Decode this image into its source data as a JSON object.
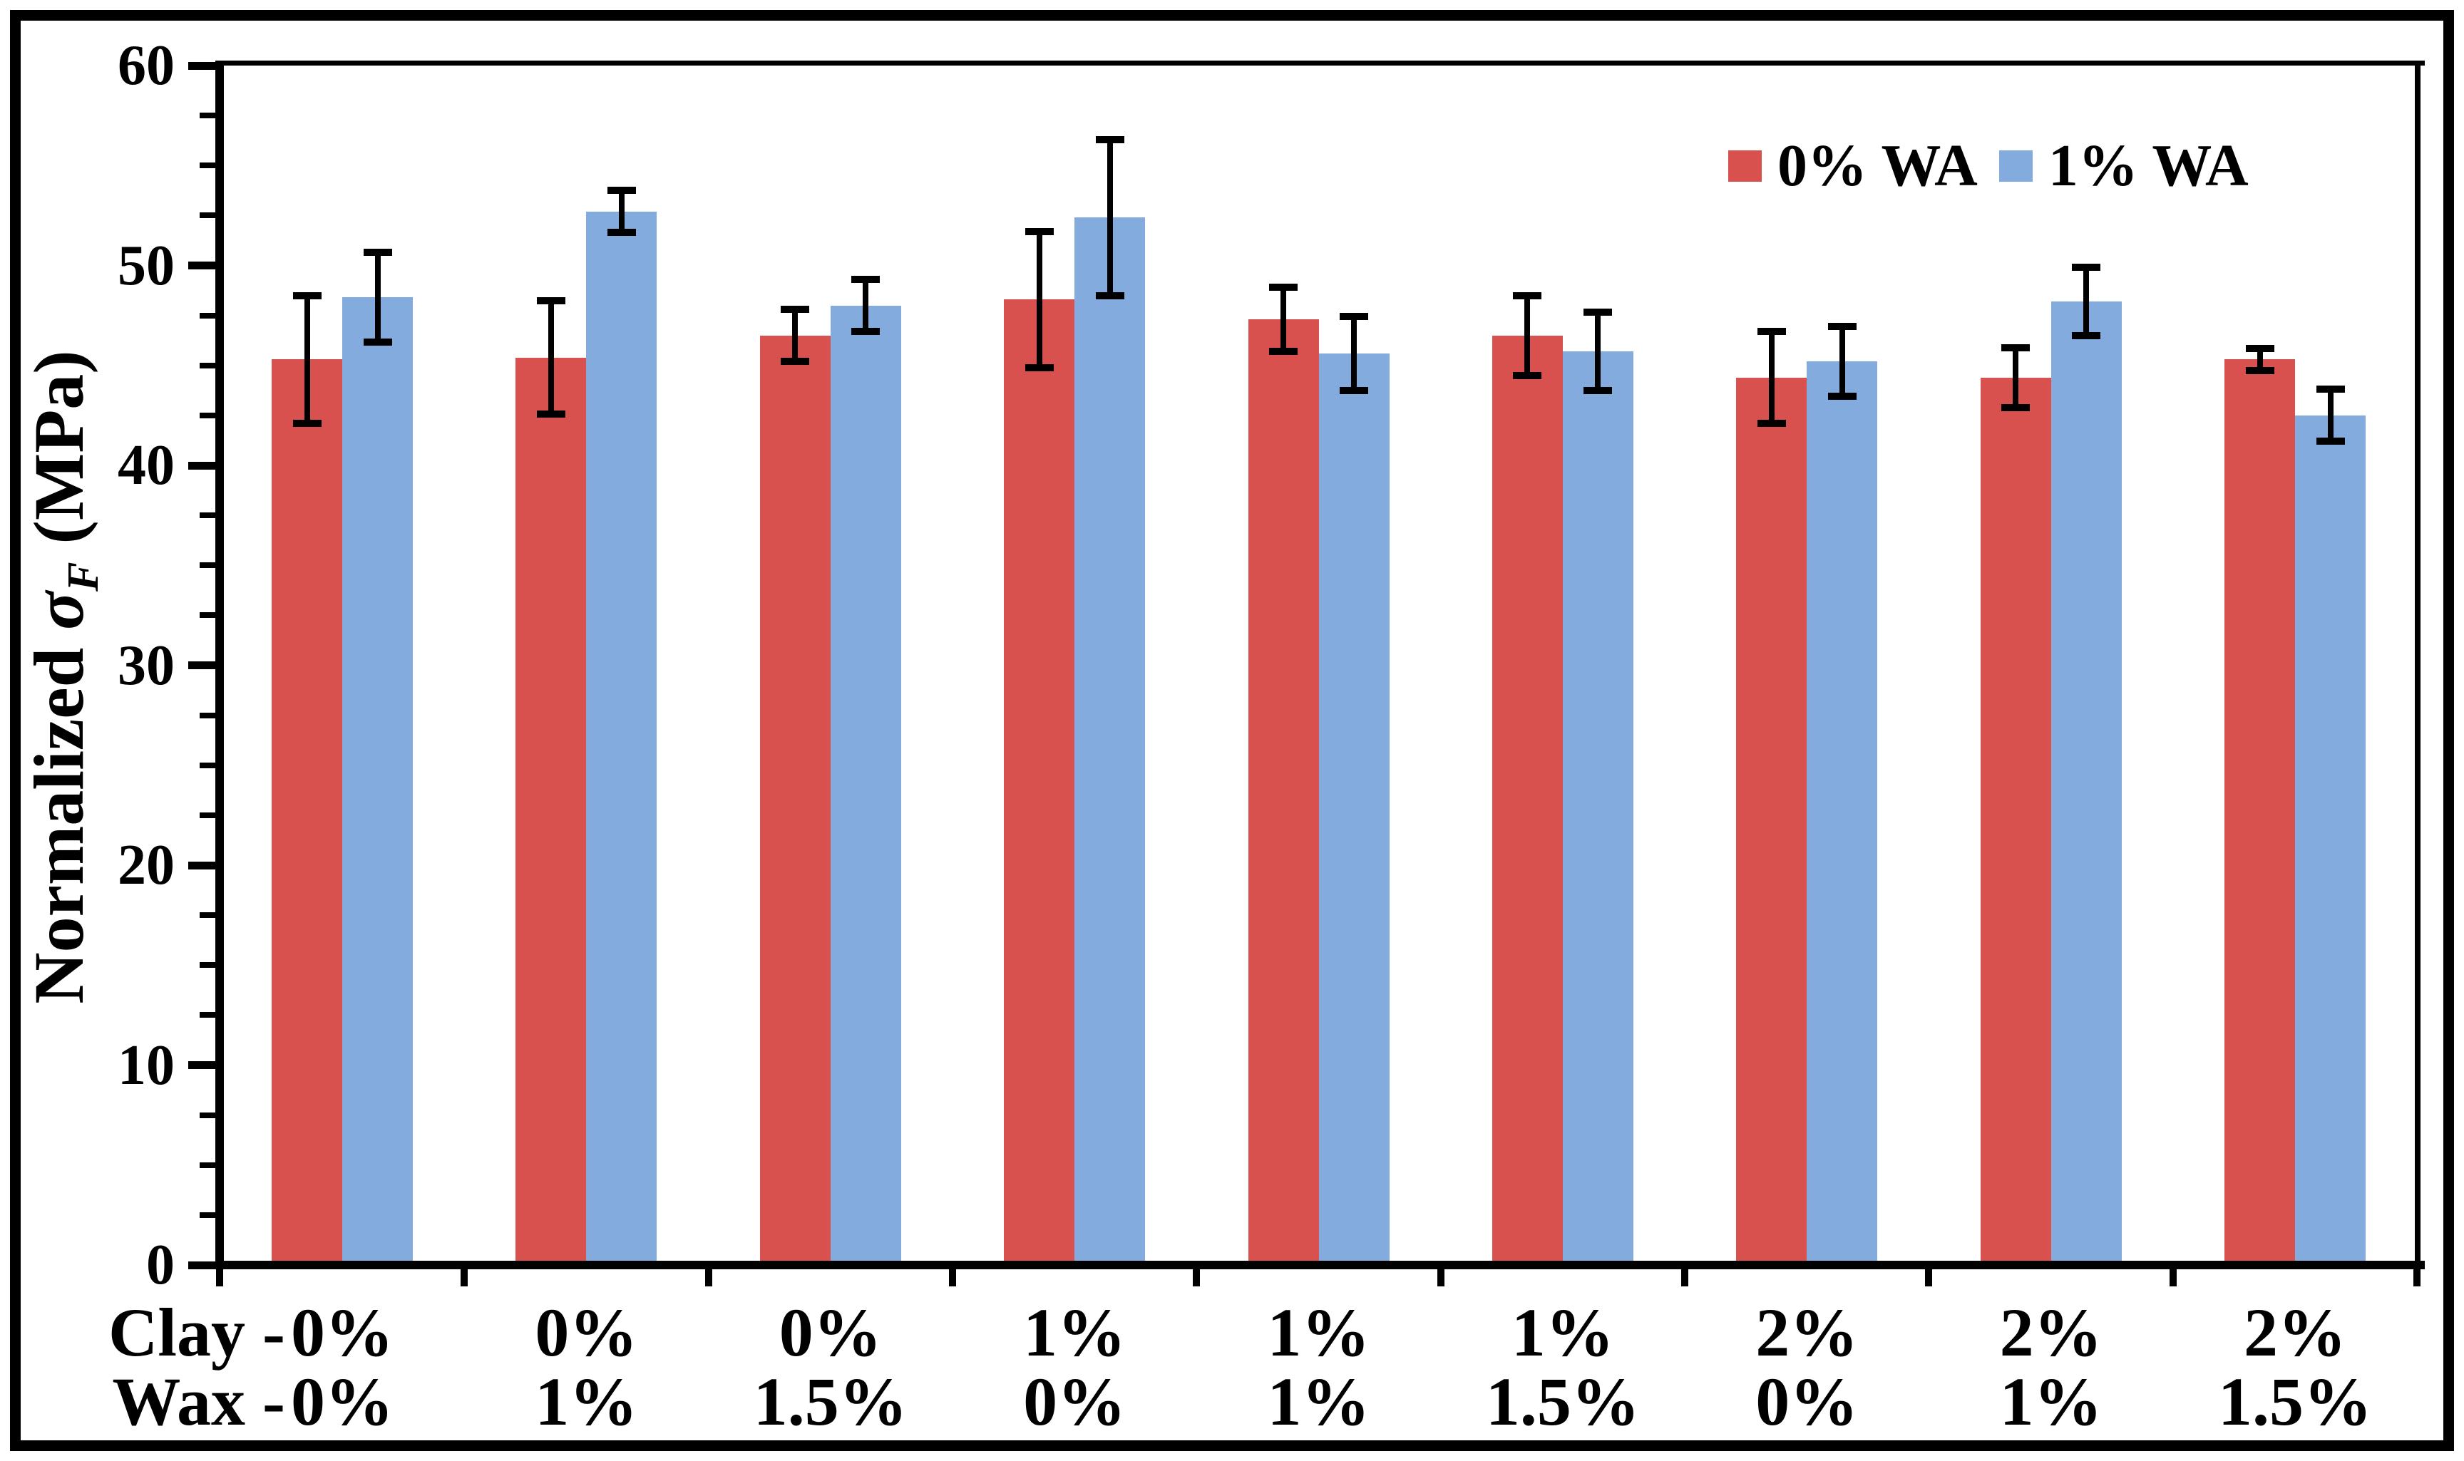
{
  "chart_data": {
    "type": "bar",
    "title": "",
    "ylabel": "Normalized σF (MPa)",
    "ylabel_parts": {
      "prefix": "Normalized ",
      "symbol": "σ",
      "subscript": "F",
      "suffix": " (MPa)"
    },
    "ylim": [
      0,
      60
    ],
    "yticks": [
      0,
      10,
      20,
      30,
      40,
      50,
      60
    ],
    "minor_tick_step": 2.5,
    "grid": "off",
    "legend_position": "top-right",
    "x_axis_rows": {
      "row1_prefix": "Clay -",
      "row2_prefix": "Wax -"
    },
    "categories": [
      {
        "clay": "0%",
        "wax": "0%"
      },
      {
        "clay": "0%",
        "wax": "1%"
      },
      {
        "clay": "0%",
        "wax": "1.5%"
      },
      {
        "clay": "1%",
        "wax": "0%"
      },
      {
        "clay": "1%",
        "wax": "1%"
      },
      {
        "clay": "1%",
        "wax": "1.5%"
      },
      {
        "clay": "2%",
        "wax": "0%"
      },
      {
        "clay": "2%",
        "wax": "1%"
      },
      {
        "clay": "2%",
        "wax": "1.5%"
      }
    ],
    "series": [
      {
        "name": "0% WA",
        "color": "#D9514F",
        "values": [
          45.3,
          45.4,
          46.5,
          48.3,
          47.3,
          46.5,
          44.4,
          44.4,
          45.3
        ],
        "errors": [
          3.2,
          2.85,
          1.3,
          3.4,
          1.6,
          2.0,
          2.3,
          1.5,
          0.55
        ]
      },
      {
        "name": "1% WA",
        "color": "#84ABDE",
        "values": [
          48.4,
          52.7,
          48.0,
          52.4,
          45.6,
          45.7,
          45.2,
          48.2,
          42.5
        ],
        "errors": [
          2.25,
          1.05,
          1.3,
          3.9,
          1.85,
          1.95,
          1.75,
          1.7,
          1.3
        ]
      }
    ]
  }
}
